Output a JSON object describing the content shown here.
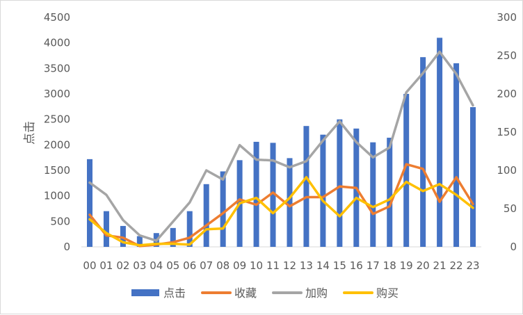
{
  "chart_data": {
    "type": "bar",
    "categories": [
      "00",
      "01",
      "02",
      "03",
      "04",
      "05",
      "06",
      "07",
      "08",
      "09",
      "10",
      "11",
      "12",
      "13",
      "14",
      "15",
      "16",
      "17",
      "18",
      "19",
      "20",
      "21",
      "22",
      "23"
    ],
    "ylabel": "点击",
    "y_left": {
      "range": [
        0,
        4500
      ],
      "ticks": [
        "0",
        "500",
        "1000",
        "1500",
        "2000",
        "2500",
        "3000",
        "3500",
        "4000",
        "4500"
      ]
    },
    "y_right": {
      "range": [
        0,
        300
      ],
      "ticks": [
        "0",
        "50",
        "100",
        "150",
        "200",
        "250",
        "300"
      ]
    },
    "grid": false,
    "legend_position": "bottom",
    "series": [
      {
        "name": "点击",
        "kind": "bar",
        "axis": "left",
        "color": "#4472c4",
        "values": [
          1720,
          700,
          410,
          210,
          270,
          370,
          700,
          1230,
          1480,
          1700,
          2060,
          2040,
          1740,
          2370,
          2200,
          2500,
          2320,
          2050,
          2140,
          3000,
          3720,
          4100,
          3600,
          2740
        ]
      },
      {
        "name": "收藏",
        "kind": "line",
        "axis": "right",
        "color": "#ed7d31",
        "values": [
          42,
          15,
          12,
          1,
          3,
          6,
          12,
          28,
          44,
          62,
          55,
          71,
          53,
          65,
          65,
          79,
          77,
          43,
          53,
          108,
          102,
          59,
          91,
          56
        ]
      },
      {
        "name": "加购",
        "kind": "line",
        "axis": "right",
        "color": "#a5a5a5",
        "values": [
          84,
          68,
          35,
          15,
          8,
          33,
          58,
          100,
          88,
          133,
          114,
          113,
          104,
          112,
          139,
          164,
          137,
          117,
          130,
          202,
          227,
          255,
          226,
          185
        ]
      },
      {
        "name": "购买",
        "kind": "line",
        "axis": "right",
        "color": "#ffc000",
        "values": [
          36,
          18,
          6,
          2,
          4,
          4,
          3,
          23,
          24,
          57,
          64,
          44,
          64,
          91,
          60,
          40,
          64,
          52,
          62,
          85,
          73,
          82,
          68,
          51
        ]
      }
    ]
  }
}
